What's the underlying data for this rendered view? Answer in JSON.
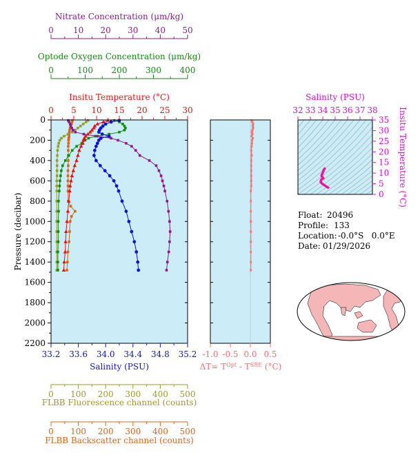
{
  "colors": {
    "nitrate": "#8b1a8b",
    "oxygen": "#118a11",
    "temperature": "#e81010",
    "salinity": "#1010d8",
    "fluorescence": "#9a9a28",
    "backscatter": "#d8641c",
    "delta_t": "#f87070",
    "ts_axis": "#d010d0",
    "ts_curve": "#e8189c",
    "plot_bg": "#ccecf8",
    "land": "#f4b6b6",
    "ocean": "#ffffff"
  },
  "info": {
    "float_label": "Float:",
    "float_value": "20496",
    "profile_label": "Profile:",
    "profile_value": "133",
    "location_label": "Location:",
    "location_value": "-0.0°S   0.0°E",
    "date_label": "Date:",
    "date_value": "01/29/2026"
  },
  "chart_data": [
    {
      "type": "line",
      "panel": "main-profile",
      "title": "",
      "ylabel": "Pressure (decibar)",
      "ylim": [
        0,
        2200
      ],
      "y_reversed": true,
      "y_ticks": [
        0,
        200,
        400,
        600,
        800,
        1000,
        1200,
        1400,
        1600,
        1800,
        2000,
        2200
      ],
      "grid": false,
      "axes": {
        "nitrate": {
          "label": "Nitrate Concentration (μm/kg)",
          "range": [
            0,
            50
          ],
          "ticks": [
            0,
            10,
            20,
            30,
            40,
            50
          ]
        },
        "oxygen": {
          "label": "Optode Oxygen Concentration (μm/kg)",
          "range": [
            0,
            400
          ],
          "ticks": [
            0,
            100,
            200,
            300,
            400
          ]
        },
        "temperature": {
          "label": "Insitu Temperature (°C)",
          "range": [
            0,
            30
          ],
          "ticks": [
            0,
            5,
            10,
            15,
            20,
            25,
            30
          ]
        },
        "salinity": {
          "label": "Salinity (PSU)",
          "range": [
            33.2,
            35.2
          ],
          "ticks": [
            "33.2",
            "33.6",
            "34.0",
            "34.4",
            "34.8",
            "35.2"
          ]
        },
        "fluorescence": {
          "label": "FLBB Fluorescence channel (counts)",
          "range": [
            0,
            500
          ],
          "ticks": [
            0,
            100,
            200,
            300,
            400,
            500
          ]
        },
        "backscatter": {
          "label": "FLBB Backscatter channel (counts)",
          "range": [
            0,
            500
          ],
          "ticks": [
            0,
            100,
            200,
            300,
            400,
            500
          ]
        }
      },
      "series": [
        {
          "axis": "nitrate",
          "pressure": [
            5,
            20,
            40,
            60,
            80,
            100,
            120,
            140,
            160,
            180,
            200,
            230,
            260,
            300,
            350,
            400,
            450,
            500,
            550,
            600,
            650,
            700,
            800,
            900,
            1000,
            1100,
            1200,
            1300,
            1400,
            1480
          ],
          "values": [
            6.3,
            6.6,
            7.0,
            7.2,
            7.6,
            8.0,
            8.9,
            12,
            17,
            22,
            24.5,
            27.5,
            29.5,
            31,
            32.5,
            36,
            38.5,
            39.5,
            40.3,
            40.8,
            41.3,
            41.7,
            42.5,
            43,
            43.4,
            43.6,
            43.4,
            43.1,
            42.6,
            42.3
          ]
        },
        {
          "axis": "oxygen",
          "pressure": [
            5,
            20,
            40,
            60,
            80,
            100,
            120,
            140,
            160,
            180,
            200,
            230,
            260,
            300,
            350,
            400,
            450,
            500,
            550,
            600,
            650,
            700,
            800,
            900,
            1000,
            1100,
            1200,
            1300,
            1400,
            1480
          ],
          "values": [
            185,
            200,
            210,
            215,
            218,
            215,
            200,
            170,
            130,
            110,
            100,
            90,
            75,
            62,
            52,
            42,
            34,
            30,
            28,
            26,
            25,
            24,
            22,
            22,
            21,
            21,
            21,
            20,
            20,
            20
          ]
        },
        {
          "axis": "temperature",
          "pressure": [
            5,
            20,
            40,
            60,
            80,
            100,
            120,
            140,
            160,
            180,
            200,
            230,
            260,
            300,
            350,
            400,
            450,
            500,
            550,
            600,
            650,
            700,
            800,
            900,
            1000,
            1100,
            1200,
            1300,
            1400,
            1480
          ],
          "values": [
            12.5,
            11.5,
            10.2,
            9.6,
            9.4,
            9.0,
            8.6,
            8.1,
            7.6,
            7.3,
            7.1,
            7.0,
            6.6,
            6.2,
            5.9,
            5.6,
            5.2,
            4.9,
            4.6,
            4.4,
            4.2,
            4.1,
            3.9,
            3.7,
            3.5,
            3.3,
            3.2,
            3.1,
            2.9,
            2.8
          ]
        },
        {
          "axis": "salinity",
          "pressure": [
            5,
            20,
            40,
            60,
            80,
            100,
            120,
            140,
            160,
            180,
            200,
            230,
            260,
            300,
            350,
            400,
            450,
            500,
            550,
            600,
            650,
            700,
            800,
            900,
            1000,
            1100,
            1200,
            1300,
            1400,
            1480
          ],
          "values": [
            34.2,
            34.08,
            34.0,
            33.96,
            33.93,
            33.91,
            33.9,
            33.95,
            34.05,
            33.93,
            33.9,
            33.88,
            33.86,
            33.84,
            33.83,
            33.86,
            33.92,
            33.99,
            34.06,
            34.12,
            34.16,
            34.19,
            34.24,
            34.3,
            34.34,
            34.38,
            34.42,
            34.45,
            34.47,
            34.48
          ]
        },
        {
          "axis": "fluorescence",
          "pressure": [
            5,
            20,
            40,
            60,
            80,
            100,
            120,
            140,
            160,
            180,
            200,
            230,
            260,
            300,
            350,
            400,
            450,
            500,
            550,
            600,
            650,
            700,
            800,
            900,
            1000,
            1100,
            1200,
            1300,
            1400,
            1480
          ],
          "values": [
            135,
            128,
            118,
            108,
            98,
            88,
            78,
            62,
            48,
            38,
            32,
            28,
            26,
            24,
            23,
            22,
            22,
            22,
            22,
            21,
            21,
            21,
            21,
            21,
            21,
            21,
            21,
            21,
            21,
            21
          ]
        },
        {
          "axis": "backscatter",
          "pressure": [
            5,
            20,
            40,
            60,
            80,
            100,
            120,
            140,
            160,
            180,
            200,
            230,
            260,
            300,
            350,
            400,
            450,
            500,
            550,
            600,
            650,
            700,
            800,
            850,
            900,
            950,
            1000,
            1100,
            1200,
            1300,
            1400,
            1480
          ],
          "values": [
            78,
            77,
            75,
            72,
            70,
            68,
            67,
            66,
            66,
            65,
            64,
            64,
            63,
            63,
            63,
            63,
            63,
            62,
            62,
            62,
            62,
            62,
            63,
            72,
            88,
            75,
            70,
            68,
            66,
            62,
            60,
            58
          ]
        }
      ]
    },
    {
      "type": "line",
      "panel": "delta-t",
      "xlabel": "ΔT= T^Opt - T^SBE (°C)",
      "xlim": [
        -1.0,
        0.5
      ],
      "x_ticks": [
        "-1.0",
        "-0.5",
        "0.0",
        "0.5"
      ],
      "ylim": [
        0,
        2200
      ],
      "y_reversed": true,
      "series": [
        {
          "pressure": [
            5,
            20,
            40,
            60,
            80,
            100,
            120,
            140,
            160,
            180,
            200,
            230,
            260,
            300,
            350,
            400,
            450,
            500,
            550,
            600,
            650,
            700,
            800,
            900,
            1000,
            1100,
            1200,
            1300,
            1400,
            1480
          ],
          "values": [
            0.02,
            0.05,
            0.07,
            0.06,
            0.07,
            0.05,
            0.04,
            0.05,
            0.03,
            0.06,
            0.04,
            0.04,
            0.03,
            0.02,
            0.03,
            0.02,
            0.02,
            0.02,
            0.02,
            0.02,
            0.02,
            0.01,
            0.01,
            0.01,
            0.01,
            0.01,
            0.01,
            0.01,
            0.01,
            0.01
          ]
        }
      ]
    },
    {
      "type": "line",
      "panel": "ts-diagram",
      "xlabel": "Salinity (PSU)",
      "ylabel": "Insitu Temperature (°C)",
      "xlim": [
        32,
        38
      ],
      "ylim": [
        0,
        35
      ],
      "x_ticks": [
        32,
        33,
        34,
        35,
        36,
        37,
        38
      ],
      "y_ticks": [
        0,
        5,
        10,
        15,
        20,
        25,
        30,
        35
      ],
      "series": [
        {
          "salinity": [
            34.2,
            34.08,
            34.0,
            33.96,
            33.93,
            33.9,
            34.05,
            33.9,
            33.86,
            33.83,
            33.92,
            34.06,
            34.16,
            34.24,
            34.34,
            34.42,
            34.47,
            34.48
          ],
          "temperature": [
            12.5,
            11.5,
            10.2,
            9.6,
            9.4,
            8.6,
            7.6,
            7.1,
            6.6,
            5.9,
            5.2,
            4.6,
            4.2,
            3.9,
            3.5,
            3.2,
            2.9,
            2.8
          ]
        }
      ]
    }
  ]
}
